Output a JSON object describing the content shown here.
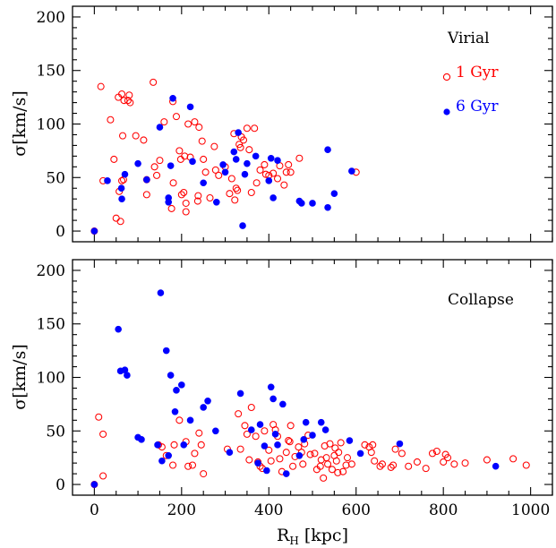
{
  "chart_data": [
    {
      "type": "scatter",
      "panel": "top",
      "annotation": "Virial",
      "ylabel": "σ[km/s]",
      "xlim": [
        -50,
        1050
      ],
      "ylim": [
        -10,
        210
      ],
      "xticks": [
        0,
        200,
        400,
        600,
        800,
        1000
      ],
      "yticks": [
        0,
        50,
        100,
        150,
        200
      ],
      "legend": "top-right",
      "series": [
        {
          "name": "1 Gyr",
          "color": "#ff0000",
          "marker": "open-circle",
          "points": [
            [
              0,
              0
            ],
            [
              15,
              135
            ],
            [
              20,
              47
            ],
            [
              37,
              104
            ],
            [
              45,
              67
            ],
            [
              50,
              12
            ],
            [
              55,
              125
            ],
            [
              57,
              37
            ],
            [
              60,
              9
            ],
            [
              63,
              128
            ],
            [
              63,
              47
            ],
            [
              65,
              89
            ],
            [
              67,
              48
            ],
            [
              68,
              122
            ],
            [
              77,
              122
            ],
            [
              80,
              127
            ],
            [
              82,
              120
            ],
            [
              95,
              89
            ],
            [
              113,
              85
            ],
            [
              120,
              34
            ],
            [
              120,
              48
            ],
            [
              135,
              139
            ],
            [
              138,
              60
            ],
            [
              143,
              52
            ],
            [
              150,
              66
            ],
            [
              160,
              102
            ],
            [
              177,
              21
            ],
            [
              180,
              121
            ],
            [
              181,
              45
            ],
            [
              188,
              107
            ],
            [
              195,
              75
            ],
            [
              198,
              67
            ],
            [
              200,
              34
            ],
            [
              205,
              36
            ],
            [
              207,
              70
            ],
            [
              210,
              18
            ],
            [
              210,
              26
            ],
            [
              215,
              100
            ],
            [
              220,
              69
            ],
            [
              230,
              102
            ],
            [
              237,
              28
            ],
            [
              238,
              33
            ],
            [
              240,
              97
            ],
            [
              247,
              84
            ],
            [
              250,
              67
            ],
            [
              255,
              55
            ],
            [
              265,
              31
            ],
            [
              275,
              79
            ],
            [
              278,
              57
            ],
            [
              285,
              52
            ],
            [
              300,
              60
            ],
            [
              310,
              35
            ],
            [
              315,
              49
            ],
            [
              320,
              91
            ],
            [
              322,
              29
            ],
            [
              325,
              40
            ],
            [
              328,
              38
            ],
            [
              332,
              81
            ],
            [
              335,
              78
            ],
            [
              337,
              88
            ],
            [
              342,
              85
            ],
            [
              350,
              96
            ],
            [
              355,
              76
            ],
            [
              360,
              36
            ],
            [
              367,
              96
            ],
            [
              372,
              45
            ],
            [
              380,
              57
            ],
            [
              390,
              62
            ],
            [
              393,
              53
            ],
            [
              400,
              52
            ],
            [
              410,
              54
            ],
            [
              420,
              49
            ],
            [
              425,
              61
            ],
            [
              435,
              43
            ],
            [
              440,
              55
            ],
            [
              445,
              62
            ],
            [
              450,
              55
            ],
            [
              470,
              68
            ],
            [
              600,
              55
            ]
          ]
        },
        {
          "name": "6 Gyr",
          "color": "#0000ff",
          "marker": "filled-circle",
          "points": [
            [
              0,
              0
            ],
            [
              30,
              47
            ],
            [
              62,
              40
            ],
            [
              63,
              30
            ],
            [
              70,
              53
            ],
            [
              100,
              63
            ],
            [
              120,
              48
            ],
            [
              150,
              97
            ],
            [
              170,
              27
            ],
            [
              170,
              31
            ],
            [
              175,
              61
            ],
            [
              180,
              124
            ],
            [
              220,
              116
            ],
            [
              225,
              65
            ],
            [
              250,
              45
            ],
            [
              280,
              27
            ],
            [
              295,
              62
            ],
            [
              300,
              55
            ],
            [
              320,
              74
            ],
            [
              325,
              67
            ],
            [
              330,
              92
            ],
            [
              340,
              5
            ],
            [
              345,
              53
            ],
            [
              350,
              63
            ],
            [
              370,
              70
            ],
            [
              400,
              47
            ],
            [
              405,
              68
            ],
            [
              410,
              31
            ],
            [
              420,
              66
            ],
            [
              470,
              28
            ],
            [
              475,
              26
            ],
            [
              500,
              26
            ],
            [
              535,
              22
            ],
            [
              535,
              76
            ],
            [
              550,
              35
            ],
            [
              590,
              56
            ]
          ]
        }
      ]
    },
    {
      "type": "scatter",
      "panel": "bottom",
      "annotation": "Collapse",
      "xlabel": "R_H [kpc]",
      "ylabel": "σ[km/s]",
      "xlim": [
        -50,
        1050
      ],
      "ylim": [
        -10,
        210
      ],
      "xticks": [
        0,
        200,
        400,
        600,
        800,
        1000
      ],
      "yticks": [
        0,
        50,
        100,
        150,
        200
      ],
      "series": [
        {
          "name": "1 Gyr",
          "color": "#ff0000",
          "marker": "open-circle",
          "points": [
            [
              0,
              0
            ],
            [
              10,
              63
            ],
            [
              20,
              47
            ],
            [
              20,
              8
            ],
            [
              147,
              37
            ],
            [
              155,
              35
            ],
            [
              165,
              27
            ],
            [
              180,
              18
            ],
            [
              183,
              37
            ],
            [
              195,
              60
            ],
            [
              210,
              40
            ],
            [
              215,
              17
            ],
            [
              225,
              18
            ],
            [
              230,
              29
            ],
            [
              240,
              48
            ],
            [
              245,
              37
            ],
            [
              250,
              10
            ],
            [
              305,
              33
            ],
            [
              330,
              66
            ],
            [
              335,
              33
            ],
            [
              345,
              55
            ],
            [
              350,
              47
            ],
            [
              355,
              23
            ],
            [
              360,
              72
            ],
            [
              370,
              45
            ],
            [
              375,
              21
            ],
            [
              380,
              17
            ],
            [
              385,
              15
            ],
            [
              390,
              50
            ],
            [
              400,
              32
            ],
            [
              405,
              22
            ],
            [
              410,
              56
            ],
            [
              415,
              51
            ],
            [
              420,
              45
            ],
            [
              425,
              24
            ],
            [
              430,
              12
            ],
            [
              440,
              30
            ],
            [
              445,
              41
            ],
            [
              448,
              40
            ],
            [
              450,
              55
            ],
            [
              455,
              17
            ],
            [
              460,
              26
            ],
            [
              468,
              35
            ],
            [
              475,
              30
            ],
            [
              478,
              19
            ],
            [
              482,
              38
            ],
            [
              490,
              46
            ],
            [
              495,
              28
            ],
            [
              505,
              29
            ],
            [
              510,
              14
            ],
            [
              518,
              17
            ],
            [
              520,
              23
            ],
            [
              525,
              6
            ],
            [
              528,
              36
            ],
            [
              532,
              25
            ],
            [
              535,
              19
            ],
            [
              540,
              38
            ],
            [
              545,
              14
            ],
            [
              550,
              27
            ],
            [
              552,
              34
            ],
            [
              555,
              22
            ],
            [
              558,
              11
            ],
            [
              560,
              30
            ],
            [
              565,
              39
            ],
            [
              570,
              12
            ],
            [
              577,
              18
            ],
            [
              580,
              25
            ],
            [
              590,
              19
            ],
            [
              620,
              37
            ],
            [
              630,
              35
            ],
            [
              635,
              30
            ],
            [
              638,
              37
            ],
            [
              642,
              22
            ],
            [
              655,
              17
            ],
            [
              660,
              19
            ],
            [
              680,
              16
            ],
            [
              685,
              18
            ],
            [
              690,
              33
            ],
            [
              705,
              29
            ],
            [
              720,
              17
            ],
            [
              740,
              21
            ],
            [
              760,
              15
            ],
            [
              775,
              29
            ],
            [
              785,
              31
            ],
            [
              800,
              21
            ],
            [
              805,
              28
            ],
            [
              810,
              25
            ],
            [
              825,
              19
            ],
            [
              850,
              20
            ],
            [
              900,
              23
            ],
            [
              960,
              24
            ],
            [
              990,
              18
            ]
          ]
        },
        {
          "name": "6 Gyr",
          "color": "#0000ff",
          "marker": "filled-circle",
          "points": [
            [
              0,
              0
            ],
            [
              55,
              145
            ],
            [
              60,
              106
            ],
            [
              70,
              107
            ],
            [
              75,
              102
            ],
            [
              100,
              44
            ],
            [
              108,
              42
            ],
            [
              145,
              37
            ],
            [
              152,
              179
            ],
            [
              155,
              22
            ],
            [
              165,
              125
            ],
            [
              170,
              27
            ],
            [
              175,
              102
            ],
            [
              185,
              68
            ],
            [
              188,
              88
            ],
            [
              200,
              93
            ],
            [
              205,
              37
            ],
            [
              220,
              60
            ],
            [
              250,
              72
            ],
            [
              260,
              78
            ],
            [
              278,
              50
            ],
            [
              310,
              30
            ],
            [
              335,
              85
            ],
            [
              360,
              51
            ],
            [
              375,
              20
            ],
            [
              380,
              56
            ],
            [
              390,
              36
            ],
            [
              395,
              13
            ],
            [
              405,
              91
            ],
            [
              410,
              80
            ],
            [
              415,
              47
            ],
            [
              420,
              37
            ],
            [
              432,
              75
            ],
            [
              440,
              10
            ],
            [
              470,
              27
            ],
            [
              480,
              42
            ],
            [
              485,
              58
            ],
            [
              500,
              46
            ],
            [
              520,
              58
            ],
            [
              530,
              51
            ],
            [
              585,
              41
            ],
            [
              610,
              29
            ],
            [
              700,
              38
            ],
            [
              920,
              17
            ]
          ]
        }
      ]
    }
  ]
}
